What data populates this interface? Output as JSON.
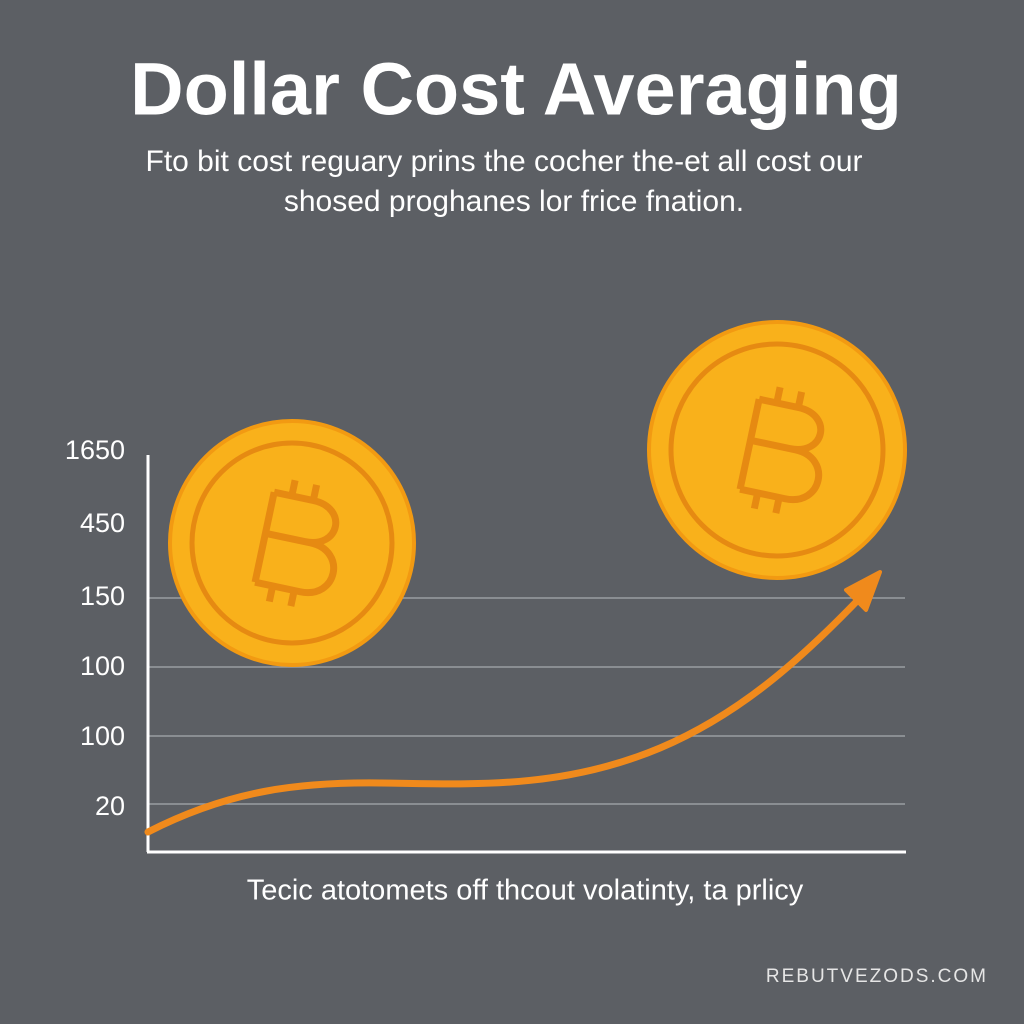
{
  "header": {
    "title": "Dollar Cost Averaging",
    "subtitle_lines": [
      "Fto bit cost reguary prins the cocher the-et all cost our",
      "shosed proghanes lor frice fnation."
    ]
  },
  "axis": {
    "labels": [
      "1650",
      "450",
      "150",
      "100",
      "100",
      "20"
    ]
  },
  "caption": "Tecic atotomets off thcout volatinty, ta prlicy",
  "watermark": "REBUTVEZODS.COM"
}
